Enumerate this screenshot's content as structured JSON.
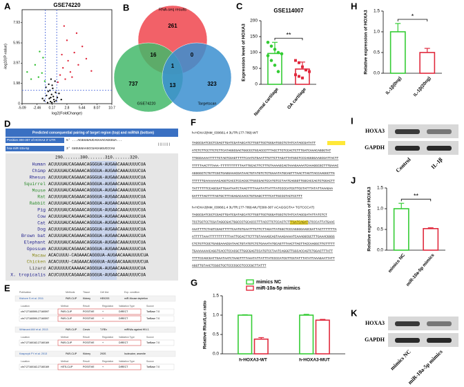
{
  "chart_data": [
    {
      "type": "scatter",
      "label": "A",
      "title": "GSE74220",
      "x_label": "log2(FoldChange)",
      "y_label": "-log10(P-value)",
      "xlim": [
        -5.09,
        10.7
      ],
      "ylim": [
        0,
        9.2
      ],
      "xticks": [
        -5.09,
        -2.46,
        0.17,
        2.8,
        5.44,
        8.07,
        10.7
      ],
      "yticks": [
        0,
        1.98,
        3.97,
        5.95,
        7.93
      ],
      "vlines": [
        -1,
        1
      ],
      "hline": 1.3,
      "threshold_color": "#3b5bd6",
      "series": [
        {
          "color": "#111111",
          "x": [
            -1.2,
            -0.8,
            -0.5,
            -0.3,
            -0.1,
            0.1,
            0.3,
            0.5,
            0.8,
            1.1,
            -0.6,
            0.2,
            0.4,
            -0.2,
            0.6,
            -1.5,
            1.4,
            0,
            -0.4,
            0.9,
            -0.9,
            0.7,
            0.15,
            -0.05,
            1.8
          ],
          "values": [
            0.3,
            0.8,
            1.2,
            0.5,
            0.2,
            0.9,
            1.5,
            0.4,
            1.1,
            0.6,
            0.1,
            1.8,
            0.7,
            1.3,
            0.2,
            0.5,
            1.0,
            2.4,
            1.9,
            0.3,
            1.6,
            2.2,
            0.1,
            0.6,
            0.4
          ]
        },
        {
          "color": "#e0283c",
          "x": [
            1.2,
            1.6,
            2.1,
            2.5,
            3.0,
            3.4,
            4.1,
            4.8,
            5.5,
            6.2,
            2.8,
            3.7,
            1.9,
            4.5,
            7.1,
            2.3
          ],
          "values": [
            2.1,
            2.8,
            3.5,
            2.4,
            4.2,
            3.1,
            5.0,
            3.8,
            5.6,
            4.4,
            6.2,
            2.6,
            4.8,
            6.9,
            3.2,
            7.6
          ]
        },
        {
          "color": "#2fbf2f",
          "x": [
            -1.1,
            -1.6,
            -2.2,
            -2.8,
            -3.5,
            -1.4,
            -2.0,
            -4.2
          ],
          "values": [
            2.2,
            3.0,
            2.6,
            3.8,
            2.4,
            4.5,
            5.1,
            3.1
          ]
        }
      ]
    },
    {
      "type": "venn",
      "label": "B",
      "sets": [
        {
          "name": "RNA-seq results",
          "color": "#f0454d"
        },
        {
          "name": "GSE74220",
          "color": "#43b86a"
        },
        {
          "name": "Targetscan",
          "color": "#3b8fd0"
        }
      ],
      "regions": [
        261,
        16,
        0,
        1,
        737,
        13,
        323
      ]
    },
    {
      "type": "bar",
      "label": "C",
      "title": "GSE114007",
      "y_label": "Expression level of HOXA3",
      "categories": [
        "Normal cartilage",
        "OA cartilage"
      ],
      "colors": [
        "#33cc33",
        "#e0283c"
      ],
      "series": [
        {
          "values": [
            97,
            48
          ],
          "errors": [
            35,
            22
          ]
        }
      ],
      "points": [
        [
          132,
          120,
          110,
          100,
          96,
          90,
          75,
          60,
          40
        ],
        [
          75,
          68,
          55,
          45,
          40,
          30,
          25,
          20
        ]
      ],
      "ylim": [
        0,
        200
      ],
      "yticks": [
        0,
        50,
        100,
        150,
        200
      ],
      "significance": "**"
    },
    {
      "type": "bar",
      "label": "H",
      "y_label": "Relative expression of HOXA3",
      "categories": [
        "IL-1β(0ng)",
        "IL-1β(20ng)"
      ],
      "colors": [
        "#33cc33",
        "#e0283c"
      ],
      "series": [
        {
          "values": [
            1.0,
            0.5
          ],
          "errors": [
            0.2,
            0.1
          ]
        }
      ],
      "ylim": [
        0,
        1.5
      ],
      "yticks": [
        {
          "value": 0,
          "label": "0.0"
        },
        0.5,
        {
          "value": 1,
          "label": "1.0"
        },
        1.5
      ],
      "significance": "*"
    },
    {
      "type": "bar",
      "label": "J",
      "y_label": "Relative expression of HOXA3",
      "categories": [
        "mimics NC",
        "miR-10a-5p mimics"
      ],
      "colors": [
        "#33cc33",
        "#e0283c"
      ],
      "series": [
        {
          "values": [
            1.0,
            0.52
          ],
          "errors": [
            0.13,
            0.02
          ]
        }
      ],
      "ylim": [
        0,
        1.5
      ],
      "yticks": [
        {
          "value": 0,
          "label": "0.0"
        },
        0.5,
        {
          "value": 1,
          "label": "1.0"
        },
        1.5
      ],
      "significance": "**"
    },
    {
      "type": "bar",
      "label": "G",
      "y_label": "Relative Rluc/Luc ratio",
      "categories": [
        "h-HOXA3-WT",
        "h-HOXA3-MUT"
      ],
      "series": [
        {
          "name": "mimics NC",
          "color": "#33cc33",
          "values": [
            1.0,
            1.0
          ],
          "errors": [
            0.01,
            0.02
          ]
        },
        {
          "name": "miR-10a-5p mimics",
          "color": "#e0283c",
          "values": [
            0.38,
            0.87
          ],
          "errors": [
            0.04,
            0.02
          ]
        }
      ],
      "ylim": [
        0,
        1.5
      ],
      "yticks": [
        {
          "value": 0,
          "label": "0.0"
        },
        0.5,
        {
          "value": 1,
          "label": "1.0"
        },
        1.5
      ],
      "legend": "top"
    }
  ],
  "alignment": {
    "label": "D",
    "header": "Predicted consequential pairing of target region (top) and miRNA (bottom)",
    "target_name": "Position 300-307 of HOXA3 3' UTR",
    "target_seq": "5'  ...ACUUUUAUCAGAAACAGGGUA...",
    "mirna_name": "hsa-miR-10a-5p",
    "mirna_seq": "3'        GUGUUUAAGCCUAGAUGUCCCAU",
    "pairing": "|||||||",
    "ruler": "290.......300.......310.......320.",
    "rows": [
      [
        "Human",
        "ACUUUUAUCAGAAACAGGGUA-AUGAACAAAUUUUCUA"
      ],
      [
        "Chimp",
        "ACUUUUAUCAGAAACAGGGUA-AUGAACAAAUUUUCUA"
      ],
      [
        "Rhesus",
        "ACUUUUAUCAGAAACAGGGUA-AUGAACAAAUUUUCUA"
      ],
      [
        "Squirrel",
        "ACUUUUAUCAGAAACAGGGUA-AUGAACAAAUUUUCUA"
      ],
      [
        "Mouse",
        "ACUUUUAUCAGAAACAGGGUA-AUGAACAAAUUUUCUA"
      ],
      [
        "Rat",
        "ACUUUUAUCAGAAACAGGGUA-AUGAACAAAUUUUCUA"
      ],
      [
        "Rabbit",
        "ACUUUUAUCAGAAACAGGGUA-AUGAACAAAUUUUCUA"
      ],
      [
        "Pig",
        "ACUUUUAUCAGAAACAGGGUA-AUGAACAAAUUUUCUA"
      ],
      [
        "Cow",
        "ACUUUUAUCAGAAACAGGGUA-AUGAACAAAUUUUCUA"
      ],
      [
        "Cat",
        "ACUUUUAUCAGAAACAGGGUA-AUGAACAAAUUUUCUA"
      ],
      [
        "Dog",
        "ACUUUUAUCAGAAACAGGGUA-AUGAACAAAUUUUCUA"
      ],
      [
        "Brown bat",
        "ACUUUUAUCAGAAACAGGGUA-AUGAACAAAUUUUCUA"
      ],
      [
        "Elephant",
        "ACUUUUAUCAGAAACAGGGUA-AUGAACAAAUUUUCUA"
      ],
      [
        "Opossum",
        "ACUUUUAUCAGAAACAGGGUA-AUGAACAAAUUUUCUA"
      ],
      [
        "Macaw",
        "ACACUUUU-CAGAAACAGGGUA-AUGAACAAAUUUUCUA"
      ],
      [
        "Chicken",
        "ACACUUUU-CAGAAACAGGGUA-AUGAACAAAUUUUCUA"
      ],
      [
        "Lizard",
        "ACUUUUUUCAAAAACAGGGUA-AUGAACAAAUUUUCUA"
      ],
      [
        "X. tropicalis",
        "ACUCUUUUCAGAAACAGGGUA-AUGAACAAAUUUUCUA"
      ]
    ]
  },
  "table": {
    "label": "E",
    "groups": [
      {
        "publication": "Kishore S et al. 2011",
        "method": "PAR-CLIP",
        "tissue": "Kidney",
        "cell": "HEK293",
        "condition": "miR-Mouse depletion",
        "rows": [
          [
            "chr7:27160590-27160597",
            "PAR-CLIP",
            "POSITIVE",
            "+",
            "DIRECT",
            "TarBase 7.0"
          ],
          [
            "chr7:27160590-27160597",
            "PAR-CLIP",
            "POSITIVE",
            "+",
            "DIRECT",
            "TarBase 7.0"
          ]
        ]
      },
      {
        "publication": "Whisnant AW et al. 2013",
        "method": "PAR-CLIP",
        "tissue": "Cervix",
        "cell": "T-REx",
        "condition": "miRNAs against HIV-1",
        "rows": [
          [
            "chr7:27160162-27160169",
            "PAR-CLIP",
            "POSITIVE",
            "+",
            "DIRECT",
            "TarBase 7.0"
          ]
        ]
      },
      {
        "publication": "Kasprzyk FY et al. 2013",
        "method": "PAR-CLIP",
        "tissue": "Kidney",
        "cell": "293S",
        "condition": "Isoleucine, arsenite",
        "rows": [
          [
            "chr7:27160162-27160169",
            "HITS-CLIP",
            "POSITIVE",
            "+",
            "DIRECT",
            "TarBase 7.0"
          ]
        ]
      }
    ],
    "headers": [
      "Publication",
      "Methods",
      "Tissue",
      "Cell line",
      "Exp. condition"
    ],
    "row_headers": [
      "Location",
      "Method",
      "Result",
      "Regulation",
      "Validation Type",
      "Source"
    ]
  },
  "sequences": {
    "label": "F",
    "wt_title": "h-HOXA3(NM_030661.4 3UTR:177-789)-WT",
    "wt_lines": [
      "TAGGCGATCGCTCGAGTTGATCGATAGCATCTTGGTTGCTGGGATGGCTGTATCATAGCGATATT",
      "ATCTCTTCCTTCTCTTCATAGGCGACTGGCCCTGCACCCTTTACCTTCTCCACTCTTTGATCAAACAGGGTAT",
      "TTGGGAAAATTTTTCTAGTCGAGTTTTTCAATGTGAATTTGTTCTTAGATTATGGCTCCCAGGGGAAGCGATTACTT",
      "TTTTTAACTTTAAA-TTTTTTTTTTTAATTGCACTTCTTTGTAAAAGCAGTAAAGAAAATCAAAGGCGCTTTGAAAC",
      "AGGGGCTCTGTTCGCTGAGGAAACGATAACTGTATGTCTCTGAAATATGCAGTTTAACTTAGTTACCAAGGCTTG",
      "TTTTTTGAAAAAAACAGGTCACCTCCACGCTTGGCGAGTCCATGTCCTAATCAGGGTTGGCACCAGTCTGGACTT",
      "TATTTTTTCCAGCGATTGAATAATCTAAGTTTTAAATATTATTTATCCCCATCGTTCGTATTTATATTAAAGAA",
      "GATTTTAGTTTTAGTGCTTTAGAGACAACCTGTGAGCTTTTCATTGCCGTACTCCTTT"
    ],
    "mut_title": "h-HOXA3(NM_030661.4 3UTR:177-789)-MUT(300-307 ACAGGGTA> TGTCCCAT)",
    "mut_lines": [
      "TAGGCGATCGCTCGAGTTGATCGATAGCATCTTGGTTGCTGGGATGGCTGTATCATAGCGATATTATCTCT",
      "TCCTGCTCCTCGATAGGCGACTGGCCCTGCACCCTTTACCTTCTCCACTCTTTGATCAGATGTCCCATTATGAAC",
      "AAATTTTCTAGTCGAGTTTTTCAATGTGAATTTGTTCTTAGATTATGGCTCCCAGGGGAAGCGATTACTTTTTTTA",
      "ATTTTTAAATTTTTTTTTTTAATTGCACTTCTTTGTAAAAGCAGTAAAGAAAATCAAAGGCGCTTTGAAACGGGG",
      "CTCTGTTCGCTGAGGAAACGATAACTGTATGTCTCTGAAATATGCAGTTTAACTTAGTTACCAAGGCTTGTTTTT",
      "TGAAAAAAACAGGTCACCTCCACGCTTGGCGAGTCCATGTCCTAATCAGGGTTGGCACCAGTCTGGACTTTATT",
      "TTTTCCAGCGATTGAATAATCTAAGTTTTAAATATTATTTATCCCCATCGTTCGTATTTATATTAAAGAATTATT",
      "AGGTTGTAACTCGGCTGCTCCCCGCCTCCCCGCTTATTT"
    ]
  },
  "blots": [
    {
      "label": "I",
      "rows": [
        "HOXA3",
        "GAPDH"
      ],
      "lanes": [
        "Control",
        "IL-1β"
      ]
    },
    {
      "label": "K",
      "rows": [
        "HOXA3",
        "GAPDH"
      ],
      "lanes": [
        "mimics NC",
        "miR-10a-5p mimics"
      ]
    }
  ]
}
